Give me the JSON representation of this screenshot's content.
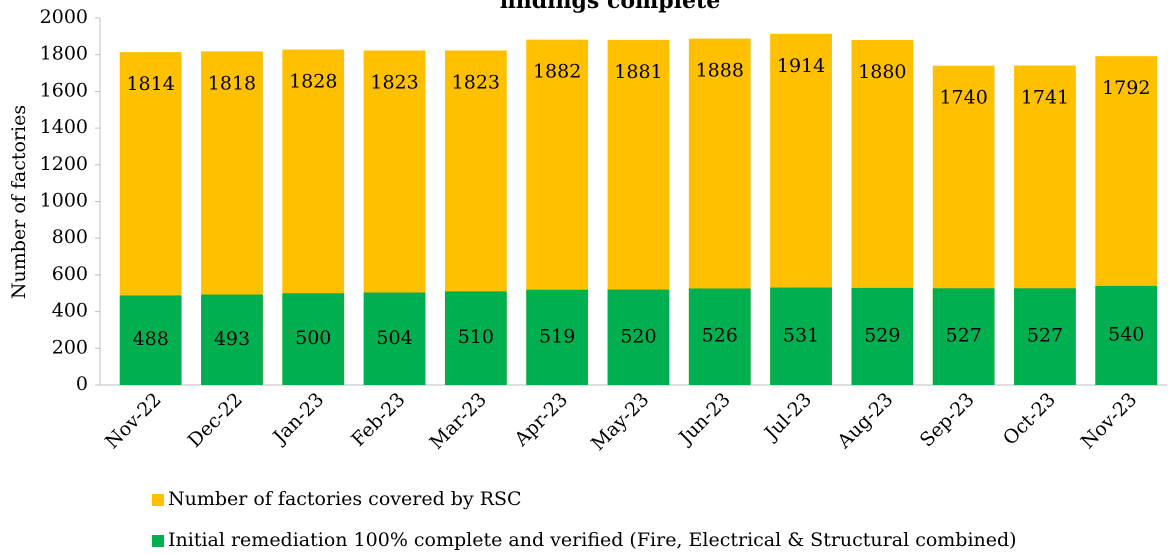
{
  "chart_data": {
    "type": "bar",
    "barmode": "overlay",
    "title": "findings complete",
    "y_label": "Number of factories",
    "categories": [
      "Nov-22",
      "Dec-22",
      "Jan-23",
      "Feb-23",
      "Mar-23",
      "Apr-23",
      "May-23",
      "Jun-23",
      "Jul-23",
      "Aug-23",
      "Sep-23",
      "Oct-23",
      "Nov-23"
    ],
    "series": [
      {
        "name": "Number of factories covered by RSC",
        "color": "#ffc000",
        "values": [
          1814,
          1818,
          1828,
          1823,
          1823,
          1882,
          1881,
          1888,
          1914,
          1880,
          1740,
          1741,
          1792
        ]
      },
      {
        "name": "Initial remediation 100% complete and verified (Fire, Electrical & Structural combined)",
        "color": "#00b050",
        "values": [
          488,
          493,
          500,
          504,
          510,
          519,
          520,
          526,
          531,
          529,
          527,
          527,
          540
        ]
      }
    ],
    "ylim": [
      0,
      2000
    ],
    "yticks": [
      0,
      200,
      400,
      600,
      800,
      1000,
      1200,
      1400,
      1600,
      1800,
      2000
    ],
    "grid": false,
    "legend": "bottom"
  }
}
